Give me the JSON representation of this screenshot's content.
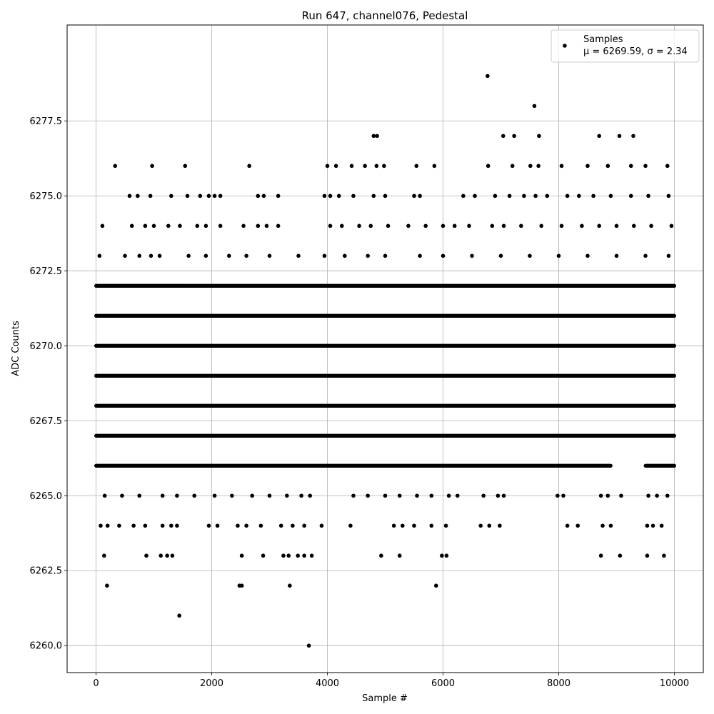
{
  "chart_data": {
    "type": "scatter",
    "title": "Run 647, channel076, Pedestal",
    "xlabel": "Sample #",
    "ylabel": "ADC Counts",
    "xlim": [
      -500,
      10500
    ],
    "ylim": [
      6259.1,
      6280.7
    ],
    "xticks": [
      0,
      2000,
      4000,
      6000,
      8000,
      10000
    ],
    "xtick_labels": [
      "0",
      "2000",
      "4000",
      "6000",
      "8000",
      "10000"
    ],
    "yticks": [
      6260.0,
      6262.5,
      6265.0,
      6267.5,
      6270.0,
      6272.5,
      6275.0,
      6277.5
    ],
    "ytick_labels": [
      "6260.0",
      "6262.5",
      "6265.0",
      "6267.5",
      "6270.0",
      "6272.5",
      "6275.0",
      "6277.5"
    ],
    "grid": true,
    "legend_position": "top-right",
    "legend": [
      "Samples",
      "μ = 6269.59, σ = 2.34"
    ],
    "marker_color": "#000000",
    "series": [
      {
        "name": "Samples",
        "bands": [
          {
            "y": 6272,
            "x_ranges": [
              [
                0,
                10000
              ]
            ]
          },
          {
            "y": 6271,
            "x_ranges": [
              [
                0,
                10000
              ]
            ]
          },
          {
            "y": 6270,
            "x_ranges": [
              [
                0,
                10000
              ]
            ]
          },
          {
            "y": 6269,
            "x_ranges": [
              [
                0,
                10000
              ]
            ]
          },
          {
            "y": 6268,
            "x_ranges": [
              [
                0,
                10000
              ]
            ]
          },
          {
            "y": 6267,
            "x_ranges": [
              [
                0,
                10000
              ]
            ]
          },
          {
            "y": 6266,
            "x_ranges": [
              [
                0,
                8900
              ],
              [
                9500,
                10000
              ]
            ]
          }
        ],
        "points": [
          {
            "x": 6770,
            "y": 6279
          },
          {
            "x": 7580,
            "y": 6278
          },
          {
            "x": 4800,
            "y": 6277
          },
          {
            "x": 4860,
            "y": 6277
          },
          {
            "x": 7040,
            "y": 6277
          },
          {
            "x": 7230,
            "y": 6277
          },
          {
            "x": 7660,
            "y": 6277
          },
          {
            "x": 8700,
            "y": 6277
          },
          {
            "x": 9050,
            "y": 6277
          },
          {
            "x": 9290,
            "y": 6277
          },
          {
            "x": 330,
            "y": 6276
          },
          {
            "x": 970,
            "y": 6276
          },
          {
            "x": 1540,
            "y": 6276
          },
          {
            "x": 2650,
            "y": 6276
          },
          {
            "x": 4000,
            "y": 6276
          },
          {
            "x": 4150,
            "y": 6276
          },
          {
            "x": 4420,
            "y": 6276
          },
          {
            "x": 4650,
            "y": 6276
          },
          {
            "x": 4850,
            "y": 6276
          },
          {
            "x": 4980,
            "y": 6276
          },
          {
            "x": 5540,
            "y": 6276
          },
          {
            "x": 5850,
            "y": 6276
          },
          {
            "x": 6780,
            "y": 6276
          },
          {
            "x": 7200,
            "y": 6276
          },
          {
            "x": 7510,
            "y": 6276
          },
          {
            "x": 7650,
            "y": 6276
          },
          {
            "x": 8050,
            "y": 6276
          },
          {
            "x": 8500,
            "y": 6276
          },
          {
            "x": 8850,
            "y": 6276
          },
          {
            "x": 9250,
            "y": 6276
          },
          {
            "x": 9500,
            "y": 6276
          },
          {
            "x": 9880,
            "y": 6276
          },
          {
            "x": 580,
            "y": 6275
          },
          {
            "x": 720,
            "y": 6275
          },
          {
            "x": 940,
            "y": 6275
          },
          {
            "x": 1300,
            "y": 6275
          },
          {
            "x": 1580,
            "y": 6275
          },
          {
            "x": 1800,
            "y": 6275
          },
          {
            "x": 1950,
            "y": 6275
          },
          {
            "x": 2050,
            "y": 6275
          },
          {
            "x": 2150,
            "y": 6275
          },
          {
            "x": 2800,
            "y": 6275
          },
          {
            "x": 2900,
            "y": 6275
          },
          {
            "x": 3150,
            "y": 6275
          },
          {
            "x": 3950,
            "y": 6275
          },
          {
            "x": 4050,
            "y": 6275
          },
          {
            "x": 4200,
            "y": 6275
          },
          {
            "x": 4450,
            "y": 6275
          },
          {
            "x": 4800,
            "y": 6275
          },
          {
            "x": 5000,
            "y": 6275
          },
          {
            "x": 5500,
            "y": 6275
          },
          {
            "x": 5600,
            "y": 6275
          },
          {
            "x": 6350,
            "y": 6275
          },
          {
            "x": 6550,
            "y": 6275
          },
          {
            "x": 6900,
            "y": 6275
          },
          {
            "x": 7150,
            "y": 6275
          },
          {
            "x": 7400,
            "y": 6275
          },
          {
            "x": 7600,
            "y": 6275
          },
          {
            "x": 7800,
            "y": 6275
          },
          {
            "x": 8150,
            "y": 6275
          },
          {
            "x": 8350,
            "y": 6275
          },
          {
            "x": 8600,
            "y": 6275
          },
          {
            "x": 8900,
            "y": 6275
          },
          {
            "x": 9250,
            "y": 6275
          },
          {
            "x": 9550,
            "y": 6275
          },
          {
            "x": 9900,
            "y": 6275
          },
          {
            "x": 110,
            "y": 6274
          },
          {
            "x": 620,
            "y": 6274
          },
          {
            "x": 850,
            "y": 6274
          },
          {
            "x": 1000,
            "y": 6274
          },
          {
            "x": 1250,
            "y": 6274
          },
          {
            "x": 1450,
            "y": 6274
          },
          {
            "x": 1750,
            "y": 6274
          },
          {
            "x": 1900,
            "y": 6274
          },
          {
            "x": 2150,
            "y": 6274
          },
          {
            "x": 2550,
            "y": 6274
          },
          {
            "x": 2800,
            "y": 6274
          },
          {
            "x": 2950,
            "y": 6274
          },
          {
            "x": 3150,
            "y": 6274
          },
          {
            "x": 4050,
            "y": 6274
          },
          {
            "x": 4250,
            "y": 6274
          },
          {
            "x": 4550,
            "y": 6274
          },
          {
            "x": 4750,
            "y": 6274
          },
          {
            "x": 5050,
            "y": 6274
          },
          {
            "x": 5400,
            "y": 6274
          },
          {
            "x": 5700,
            "y": 6274
          },
          {
            "x": 6000,
            "y": 6274
          },
          {
            "x": 6200,
            "y": 6274
          },
          {
            "x": 6450,
            "y": 6274
          },
          {
            "x": 6850,
            "y": 6274
          },
          {
            "x": 7050,
            "y": 6274
          },
          {
            "x": 7350,
            "y": 6274
          },
          {
            "x": 7700,
            "y": 6274
          },
          {
            "x": 8050,
            "y": 6274
          },
          {
            "x": 8400,
            "y": 6274
          },
          {
            "x": 8700,
            "y": 6274
          },
          {
            "x": 9000,
            "y": 6274
          },
          {
            "x": 9300,
            "y": 6274
          },
          {
            "x": 9600,
            "y": 6274
          },
          {
            "x": 9950,
            "y": 6274
          },
          {
            "x": 60,
            "y": 6273
          },
          {
            "x": 500,
            "y": 6273
          },
          {
            "x": 750,
            "y": 6273
          },
          {
            "x": 950,
            "y": 6273
          },
          {
            "x": 1100,
            "y": 6273
          },
          {
            "x": 1600,
            "y": 6273
          },
          {
            "x": 1900,
            "y": 6273
          },
          {
            "x": 2300,
            "y": 6273
          },
          {
            "x": 2600,
            "y": 6273
          },
          {
            "x": 3000,
            "y": 6273
          },
          {
            "x": 3500,
            "y": 6273
          },
          {
            "x": 3950,
            "y": 6273
          },
          {
            "x": 4300,
            "y": 6273
          },
          {
            "x": 4700,
            "y": 6273
          },
          {
            "x": 5000,
            "y": 6273
          },
          {
            "x": 5600,
            "y": 6273
          },
          {
            "x": 6000,
            "y": 6273
          },
          {
            "x": 6500,
            "y": 6273
          },
          {
            "x": 7000,
            "y": 6273
          },
          {
            "x": 7500,
            "y": 6273
          },
          {
            "x": 8000,
            "y": 6273
          },
          {
            "x": 8500,
            "y": 6273
          },
          {
            "x": 9000,
            "y": 6273
          },
          {
            "x": 9500,
            "y": 6273
          },
          {
            "x": 9900,
            "y": 6273
          },
          {
            "x": 150,
            "y": 6265
          },
          {
            "x": 450,
            "y": 6265
          },
          {
            "x": 750,
            "y": 6265
          },
          {
            "x": 1150,
            "y": 6265
          },
          {
            "x": 1400,
            "y": 6265
          },
          {
            "x": 1700,
            "y": 6265
          },
          {
            "x": 2050,
            "y": 6265
          },
          {
            "x": 2350,
            "y": 6265
          },
          {
            "x": 2700,
            "y": 6265
          },
          {
            "x": 3000,
            "y": 6265
          },
          {
            "x": 3300,
            "y": 6265
          },
          {
            "x": 3550,
            "y": 6265
          },
          {
            "x": 3700,
            "y": 6265
          },
          {
            "x": 4450,
            "y": 6265
          },
          {
            "x": 4700,
            "y": 6265
          },
          {
            "x": 5000,
            "y": 6265
          },
          {
            "x": 5250,
            "y": 6265
          },
          {
            "x": 5550,
            "y": 6265
          },
          {
            "x": 5800,
            "y": 6265
          },
          {
            "x": 6100,
            "y": 6265
          },
          {
            "x": 6250,
            "y": 6265
          },
          {
            "x": 6700,
            "y": 6265
          },
          {
            "x": 6950,
            "y": 6265
          },
          {
            "x": 7050,
            "y": 6265
          },
          {
            "x": 7980,
            "y": 6265
          },
          {
            "x": 8080,
            "y": 6265
          },
          {
            "x": 8730,
            "y": 6265
          },
          {
            "x": 8850,
            "y": 6265
          },
          {
            "x": 9080,
            "y": 6265
          },
          {
            "x": 9550,
            "y": 6265
          },
          {
            "x": 9700,
            "y": 6265
          },
          {
            "x": 9880,
            "y": 6265
          },
          {
            "x": 80,
            "y": 6264
          },
          {
            "x": 200,
            "y": 6264
          },
          {
            "x": 400,
            "y": 6264
          },
          {
            "x": 650,
            "y": 6264
          },
          {
            "x": 850,
            "y": 6264
          },
          {
            "x": 1150,
            "y": 6264
          },
          {
            "x": 1300,
            "y": 6264
          },
          {
            "x": 1400,
            "y": 6264
          },
          {
            "x": 1950,
            "y": 6264
          },
          {
            "x": 2100,
            "y": 6264
          },
          {
            "x": 2450,
            "y": 6264
          },
          {
            "x": 2600,
            "y": 6264
          },
          {
            "x": 2850,
            "y": 6264
          },
          {
            "x": 3200,
            "y": 6264
          },
          {
            "x": 3400,
            "y": 6264
          },
          {
            "x": 3600,
            "y": 6264
          },
          {
            "x": 3900,
            "y": 6264
          },
          {
            "x": 4400,
            "y": 6264
          },
          {
            "x": 5150,
            "y": 6264
          },
          {
            "x": 5300,
            "y": 6264
          },
          {
            "x": 5500,
            "y": 6264
          },
          {
            "x": 5800,
            "y": 6264
          },
          {
            "x": 6050,
            "y": 6264
          },
          {
            "x": 6650,
            "y": 6264
          },
          {
            "x": 6800,
            "y": 6264
          },
          {
            "x": 6980,
            "y": 6264
          },
          {
            "x": 8150,
            "y": 6264
          },
          {
            "x": 8330,
            "y": 6264
          },
          {
            "x": 8760,
            "y": 6264
          },
          {
            "x": 8900,
            "y": 6264
          },
          {
            "x": 9530,
            "y": 6264
          },
          {
            "x": 9630,
            "y": 6264
          },
          {
            "x": 9780,
            "y": 6264
          },
          {
            "x": 140,
            "y": 6263
          },
          {
            "x": 870,
            "y": 6263
          },
          {
            "x": 1120,
            "y": 6263
          },
          {
            "x": 1230,
            "y": 6263
          },
          {
            "x": 1320,
            "y": 6263
          },
          {
            "x": 2520,
            "y": 6263
          },
          {
            "x": 2890,
            "y": 6263
          },
          {
            "x": 3240,
            "y": 6263
          },
          {
            "x": 3330,
            "y": 6263
          },
          {
            "x": 3490,
            "y": 6263
          },
          {
            "x": 3600,
            "y": 6263
          },
          {
            "x": 3730,
            "y": 6263
          },
          {
            "x": 4930,
            "y": 6263
          },
          {
            "x": 5250,
            "y": 6263
          },
          {
            "x": 5980,
            "y": 6263
          },
          {
            "x": 6060,
            "y": 6263
          },
          {
            "x": 8730,
            "y": 6263
          },
          {
            "x": 9060,
            "y": 6263
          },
          {
            "x": 9530,
            "y": 6263
          },
          {
            "x": 9820,
            "y": 6263
          },
          {
            "x": 190,
            "y": 6262
          },
          {
            "x": 2480,
            "y": 6262
          },
          {
            "x": 2520,
            "y": 6262
          },
          {
            "x": 3350,
            "y": 6262
          },
          {
            "x": 5880,
            "y": 6262
          },
          {
            "x": 1440,
            "y": 6261
          },
          {
            "x": 3680,
            "y": 6260
          }
        ]
      }
    ]
  }
}
